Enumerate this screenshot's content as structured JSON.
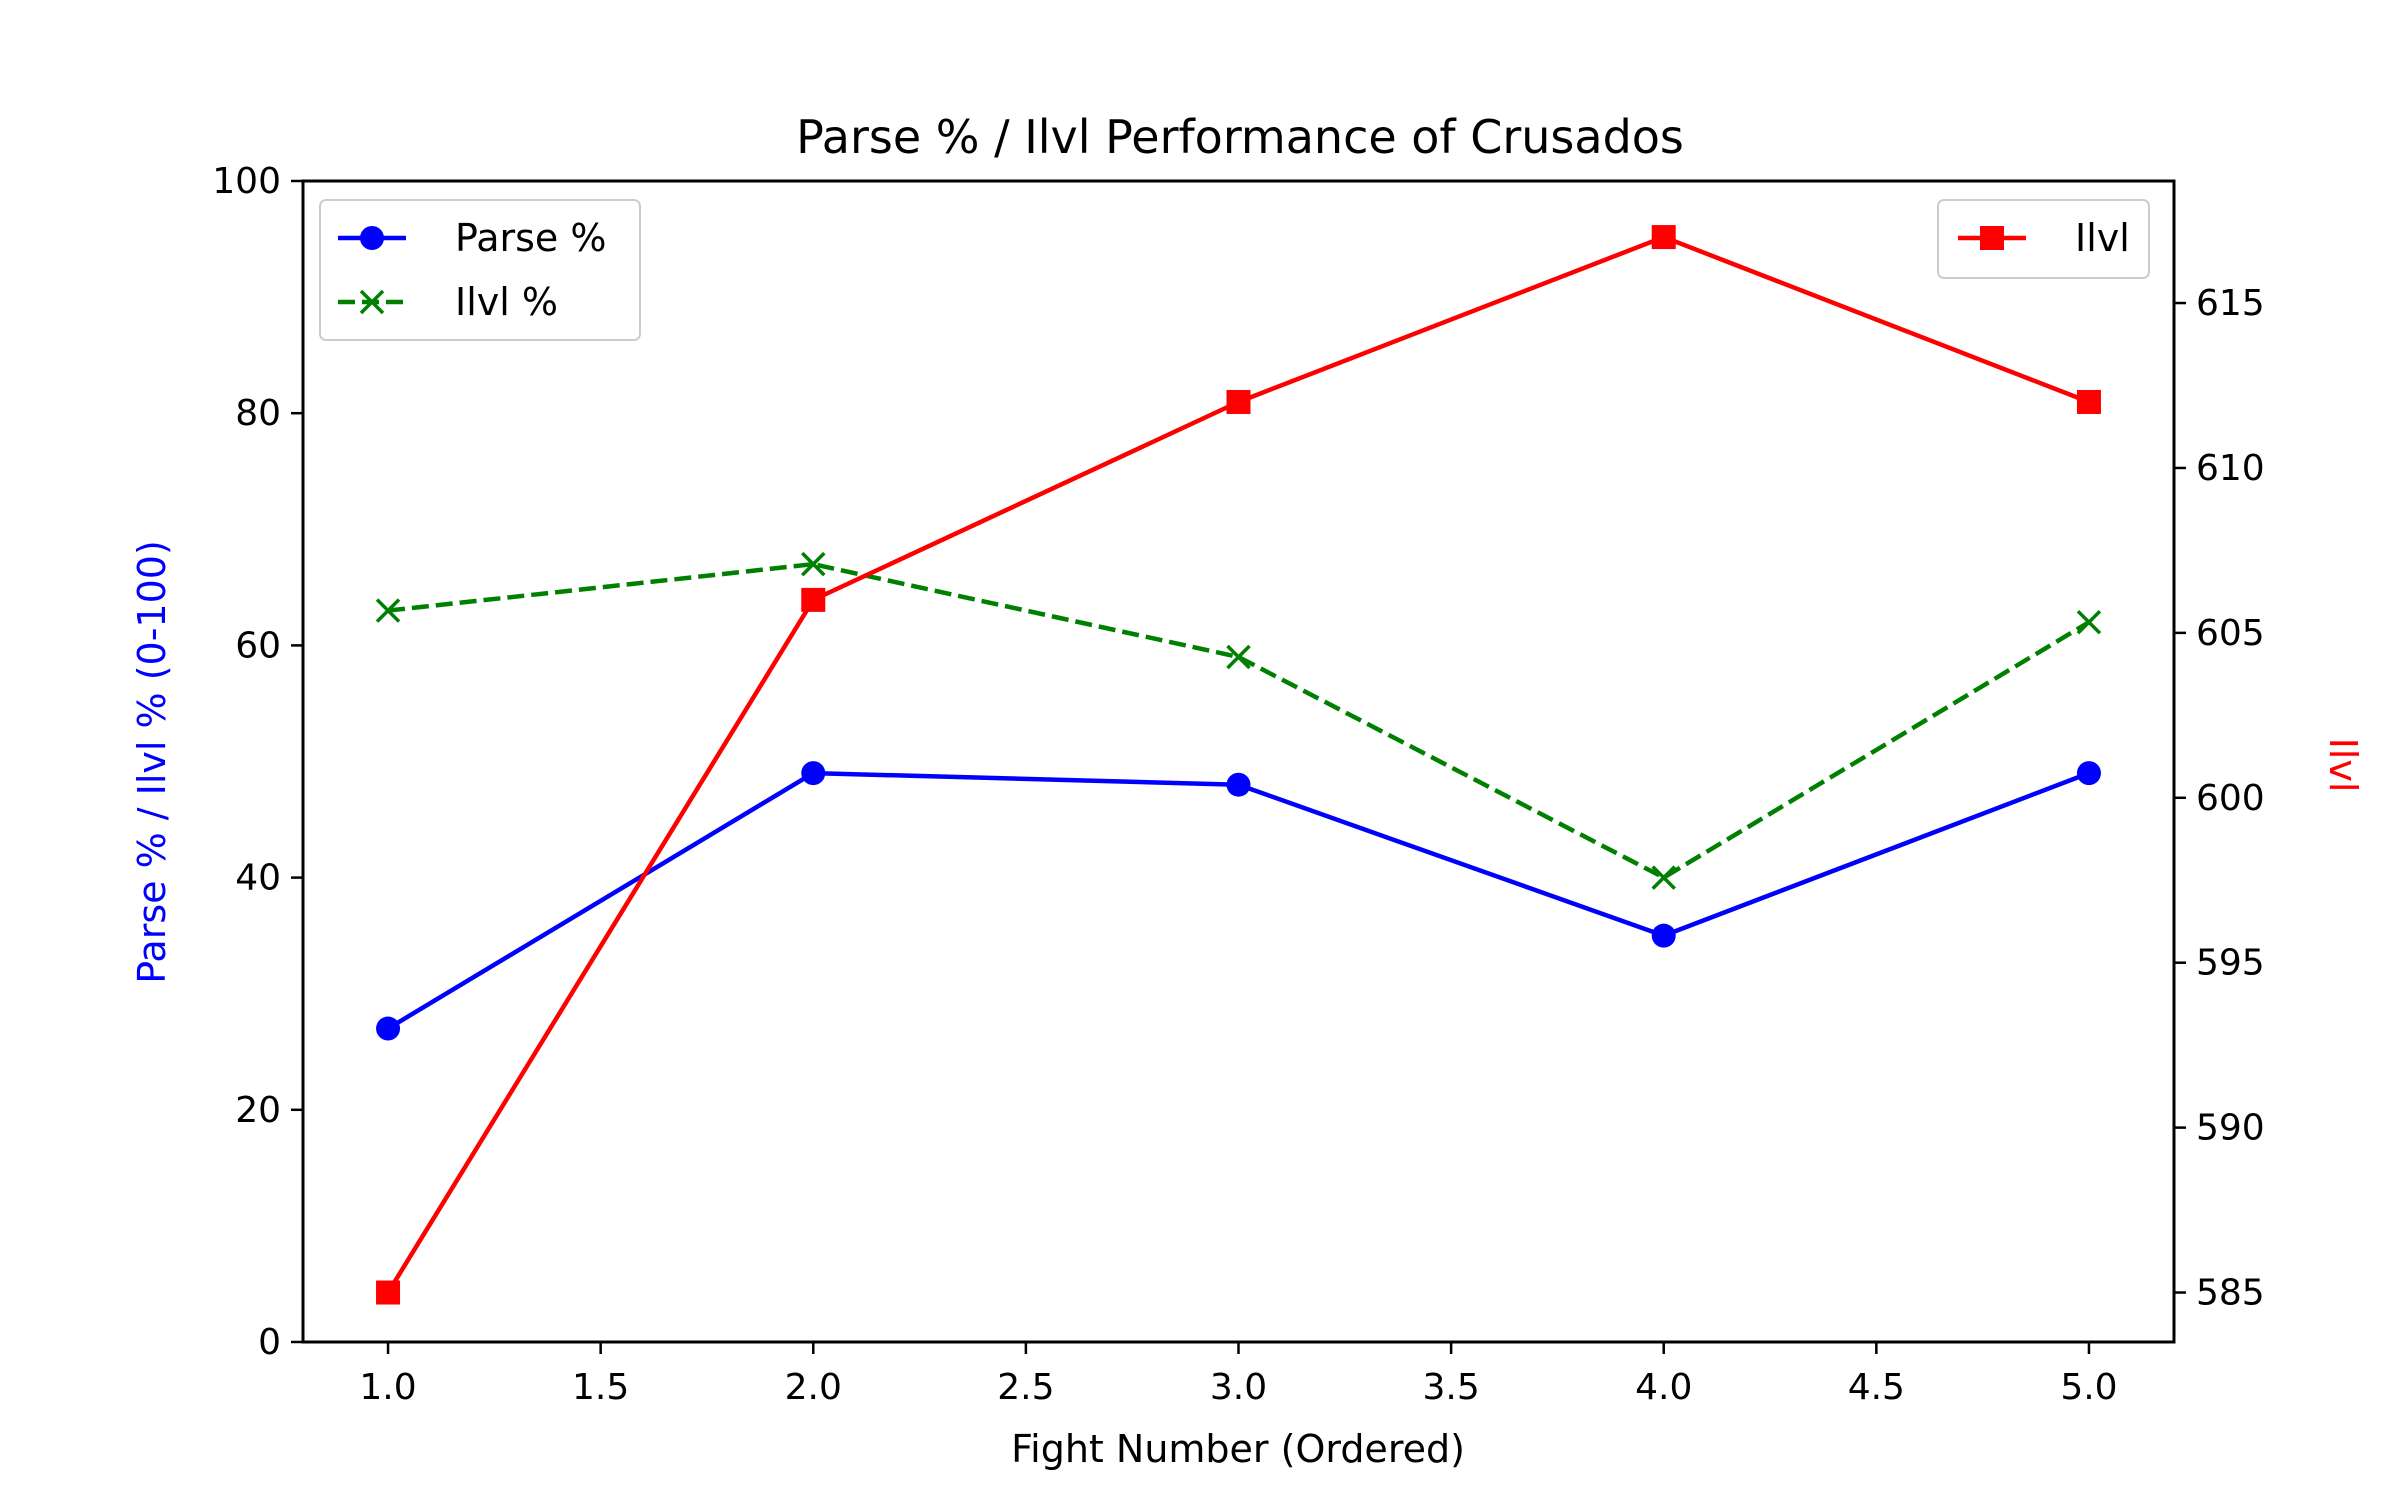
{
  "chart_data": {
    "type": "line",
    "title": "Parse % / Ilvl Performance of Crusados",
    "xlabel": "Fight Number (Ordered)",
    "ylabel_left": "Parse % / Ilvl % (0-100)",
    "ylabel_right": "Ilvl",
    "xlim": [
      0.8,
      5.2
    ],
    "ylim_left": [
      0,
      100
    ],
    "ylim_right": [
      583.5,
      618.7
    ],
    "x_ticks": [
      "1.0",
      "1.5",
      "2.0",
      "2.5",
      "3.0",
      "3.5",
      "4.0",
      "4.5",
      "5.0"
    ],
    "y_ticks_left": [
      "0",
      "20",
      "40",
      "60",
      "80",
      "100"
    ],
    "y_ticks_right": [
      "585",
      "590",
      "595",
      "600",
      "605",
      "610",
      "615"
    ],
    "x": [
      1,
      2,
      3,
      4,
      5
    ],
    "grid": false,
    "series": [
      {
        "name": "Parse %",
        "axis": "left",
        "values": [
          27,
          49,
          48,
          35,
          49
        ],
        "color": "#0000ff",
        "marker": "circle",
        "linestyle": "solid"
      },
      {
        "name": "Ilvl %",
        "axis": "left",
        "values": [
          63,
          67,
          59,
          40,
          62
        ],
        "color": "#008000",
        "marker": "x",
        "linestyle": "dashed"
      },
      {
        "name": "Ilvl",
        "axis": "right",
        "values": [
          585,
          606,
          612,
          617,
          612
        ],
        "color": "#ff0000",
        "marker": "square",
        "linestyle": "solid"
      }
    ],
    "legend_left": {
      "placement": "top-left",
      "entries": [
        "Parse %",
        "Ilvl %"
      ]
    },
    "legend_right": {
      "placement": "top-right",
      "entries": [
        "Ilvl"
      ]
    }
  }
}
